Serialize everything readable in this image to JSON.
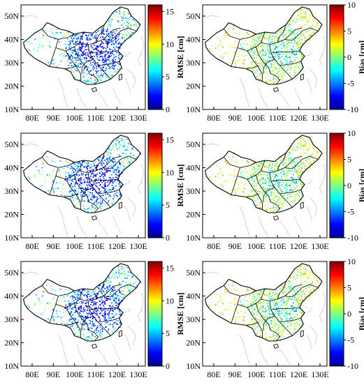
{
  "figure": {
    "lat_ticks": [
      "50N",
      "40N",
      "30N",
      "20N",
      "10N"
    ],
    "lon_ticks": [
      "80E",
      "90E",
      "100E",
      "110E",
      "120E",
      "130E"
    ],
    "panels": [
      {
        "id": "rmse-1",
        "label": "RMSE [cm]",
        "scale": "rmse",
        "ticks": [
          "15",
          "10",
          "5",
          "0"
        ],
        "range": [
          0,
          16
        ]
      },
      {
        "id": "bias-1",
        "label": "Bias [cm]",
        "scale": "bias",
        "ticks": [
          "10",
          "5",
          "0",
          "-5",
          "-10"
        ],
        "range": [
          -10,
          10
        ]
      },
      {
        "id": "rmse-2",
        "label": "RMSE [cm]",
        "scale": "rmse",
        "ticks": [
          "15",
          "10",
          "5",
          "0"
        ],
        "range": [
          0,
          16
        ]
      },
      {
        "id": "bias-2",
        "label": "Bias [cm]",
        "scale": "bias",
        "ticks": [
          "10",
          "5",
          "0",
          "-5",
          "-10"
        ],
        "range": [
          -10,
          10
        ]
      },
      {
        "id": "rmse-3",
        "label": "RMSE [cm]",
        "scale": "rmse",
        "ticks": [
          "15",
          "10",
          "5",
          "0"
        ],
        "range": [
          0,
          16
        ]
      },
      {
        "id": "bias-3",
        "label": "Bias [cm]",
        "scale": "bias",
        "ticks": [
          "10",
          "5",
          "0",
          "-5",
          "-10"
        ],
        "range": [
          -10,
          10
        ]
      }
    ],
    "colors": {
      "jet": [
        "#00008f",
        "#0000ff",
        "#0080ff",
        "#00ffff",
        "#80ff80",
        "#ffff00",
        "#ff8000",
        "#ff0000",
        "#800000"
      ],
      "border": "#000000",
      "sea_border": "#777777"
    }
  }
}
